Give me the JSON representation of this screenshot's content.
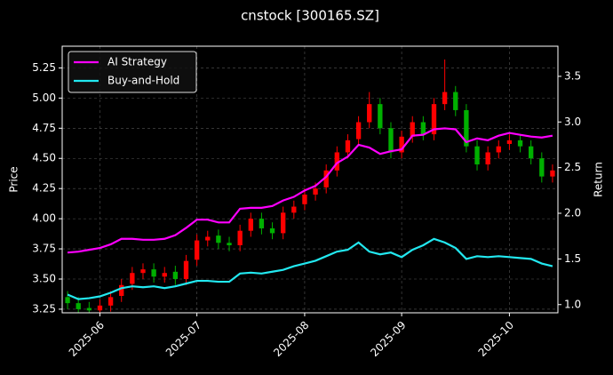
{
  "chart_data": {
    "type": "candlestick",
    "title": "cnstock [300165.SZ]",
    "ylabel": "Price",
    "y2label": "Return",
    "categories": [
      null,
      null,
      null,
      "2025-06",
      null,
      null,
      null,
      null,
      null,
      null,
      null,
      null,
      "2025-07",
      null,
      null,
      null,
      null,
      null,
      null,
      null,
      null,
      null,
      "2025-08",
      null,
      null,
      null,
      null,
      null,
      null,
      null,
      null,
      "2025-09",
      null,
      null,
      null,
      null,
      null,
      null,
      null,
      null,
      null,
      "2025-10",
      null,
      null,
      null,
      null
    ],
    "open": [
      3.35,
      3.3,
      3.26,
      3.24,
      3.28,
      3.36,
      3.46,
      3.55,
      3.58,
      3.52,
      3.56,
      3.5,
      3.66,
      3.82,
      3.86,
      3.8,
      3.78,
      3.9,
      4.0,
      3.92,
      3.88,
      4.05,
      4.12,
      4.2,
      4.26,
      4.4,
      4.55,
      4.66,
      4.8,
      4.95,
      4.75,
      4.55,
      4.68,
      4.8,
      4.7,
      4.95,
      5.05,
      4.9,
      4.6,
      4.45,
      4.55,
      4.62,
      4.65,
      4.6,
      4.5,
      4.35
    ],
    "high": [
      3.4,
      3.35,
      3.31,
      3.33,
      3.4,
      3.5,
      3.6,
      3.63,
      3.63,
      3.6,
      3.61,
      3.7,
      3.87,
      3.9,
      3.91,
      3.85,
      3.95,
      4.05,
      4.05,
      3.97,
      4.1,
      4.15,
      4.25,
      4.3,
      4.45,
      4.6,
      4.7,
      4.85,
      5.05,
      5.0,
      4.8,
      4.73,
      4.85,
      4.85,
      5.0,
      5.32,
      5.1,
      4.95,
      4.65,
      4.6,
      4.65,
      4.7,
      4.7,
      4.65,
      4.55,
      4.45
    ],
    "low": [
      3.25,
      3.22,
      3.22,
      3.22,
      3.23,
      3.31,
      3.41,
      3.5,
      3.47,
      3.47,
      3.45,
      3.45,
      3.61,
      3.77,
      3.75,
      3.73,
      3.73,
      3.85,
      3.87,
      3.83,
      3.83,
      4.0,
      4.07,
      4.15,
      4.21,
      4.35,
      4.5,
      4.61,
      4.75,
      4.7,
      4.5,
      4.5,
      4.63,
      4.65,
      4.65,
      4.9,
      4.85,
      4.55,
      4.4,
      4.4,
      4.5,
      4.57,
      4.55,
      4.45,
      4.3,
      4.3
    ],
    "close": [
      3.3,
      3.25,
      3.24,
      3.28,
      3.35,
      3.45,
      3.55,
      3.58,
      3.52,
      3.55,
      3.5,
      3.65,
      3.82,
      3.85,
      3.8,
      3.78,
      3.9,
      4.0,
      3.92,
      3.88,
      4.05,
      4.1,
      4.2,
      4.25,
      4.4,
      4.55,
      4.65,
      4.8,
      4.95,
      4.75,
      4.55,
      4.68,
      4.8,
      4.7,
      4.95,
      5.05,
      4.9,
      4.6,
      4.45,
      4.55,
      4.6,
      4.65,
      4.6,
      4.5,
      4.35,
      4.4
    ],
    "up_color": "#ff0000",
    "down_color": "#00b000",
    "series": [
      {
        "name": "AI Strategy",
        "color": "#ff00ff",
        "axis": "y2",
        "values": [
          1.57,
          1.58,
          1.6,
          1.62,
          1.66,
          1.72,
          1.72,
          1.71,
          1.71,
          1.72,
          1.76,
          1.84,
          1.93,
          1.93,
          1.9,
          1.9,
          2.05,
          2.06,
          2.06,
          2.08,
          2.14,
          2.18,
          2.25,
          2.3,
          2.4,
          2.55,
          2.62,
          2.75,
          2.72,
          2.65,
          2.68,
          2.7,
          2.85,
          2.86,
          2.92,
          2.93,
          2.92,
          2.78,
          2.82,
          2.8,
          2.85,
          2.88,
          2.86,
          2.84,
          2.83,
          2.85
        ]
      },
      {
        "name": "Buy-and-Hold",
        "color": "#22e8f0",
        "axis": "y2",
        "values": [
          1.11,
          1.06,
          1.07,
          1.09,
          1.13,
          1.18,
          1.2,
          1.19,
          1.2,
          1.18,
          1.2,
          1.23,
          1.26,
          1.26,
          1.25,
          1.25,
          1.34,
          1.35,
          1.34,
          1.36,
          1.38,
          1.42,
          1.45,
          1.48,
          1.53,
          1.58,
          1.6,
          1.68,
          1.58,
          1.55,
          1.57,
          1.52,
          1.6,
          1.65,
          1.72,
          1.68,
          1.62,
          1.5,
          1.53,
          1.52,
          1.53,
          1.52,
          1.51,
          1.5,
          1.45,
          1.42
        ]
      }
    ],
    "ylim": [
      3.22,
      5.43
    ],
    "yticks": [
      3.25,
      {
        "value": 3.5,
        "label": "3.50"
      },
      3.75,
      {
        "value": 4,
        "label": "4.00"
      },
      4.25,
      {
        "value": 4.5,
        "label": "4.50"
      },
      4.75,
      {
        "value": 5,
        "label": "5.00"
      },
      5.25
    ],
    "y2lim": [
      0.91,
      3.83
    ],
    "y2ticks": [
      {
        "value": 1,
        "label": "1.0"
      },
      1.5,
      {
        "value": 2,
        "label": "2.0"
      },
      2.5,
      {
        "value": 3,
        "label": "3.0"
      },
      3.5
    ],
    "grid": true,
    "legend": "upper left"
  }
}
